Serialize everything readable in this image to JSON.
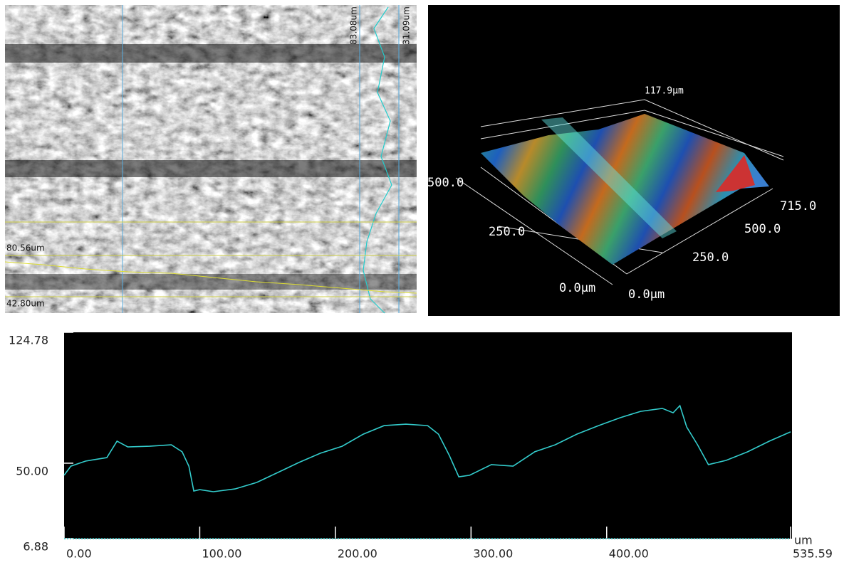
{
  "micrograph": {
    "vertical_labels": [
      "83.08um",
      "31.09um"
    ],
    "horizontal_labels": [
      "80.56um",
      "42.80um"
    ]
  },
  "surface_3d": {
    "z_max_label": "117.9μm",
    "left_axis_labels": [
      "500.0",
      "250.0",
      "0.0μm"
    ],
    "right_axis_labels": [
      "715.0",
      "500.0",
      "250.0",
      "0.0μm"
    ]
  },
  "chart_data": {
    "type": "line",
    "color": "#33cccc",
    "x_label": "um",
    "x": [
      0,
      5,
      15.8,
      31.5,
      39,
      47,
      63,
      79,
      87,
      92,
      95.6,
      100,
      110,
      126,
      142,
      157.6,
      173,
      189,
      205,
      220.6,
      236,
      252,
      268,
      276,
      284,
      291,
      299,
      315,
      331,
      347,
      362,
      378,
      394,
      410,
      425,
      441,
      449,
      454,
      459,
      467,
      475,
      488,
      504,
      520,
      535.59
    ],
    "values": [
      43.1,
      48.3,
      51.2,
      53.2,
      62.6,
      59.3,
      59.7,
      60.5,
      56.5,
      48.3,
      34.1,
      34.9,
      33.7,
      35.3,
      39.0,
      44.7,
      50.4,
      55.7,
      59.7,
      66.6,
      71.5,
      72.3,
      71.5,
      66.6,
      54.4,
      42.2,
      43.1,
      49.2,
      48.3,
      56.5,
      60.5,
      66.6,
      71.5,
      76.0,
      79.6,
      81.3,
      78.8,
      82.9,
      70.7,
      60.5,
      49.2,
      51.6,
      56.5,
      62.6,
      67.9
    ],
    "xlim": [
      0,
      535.59
    ],
    "ylim": [
      6.88,
      124.78
    ],
    "xticks": [
      {
        "value": 0,
        "label": "0.00"
      },
      {
        "value": 100,
        "label": "100.00"
      },
      {
        "value": 200,
        "label": "200.00"
      },
      {
        "value": 300,
        "label": "300.00"
      },
      {
        "value": 400,
        "label": "400.00"
      },
      535.59
    ],
    "yticks": [
      124.78,
      {
        "value": 50,
        "label": "50.00"
      },
      6.88
    ]
  }
}
